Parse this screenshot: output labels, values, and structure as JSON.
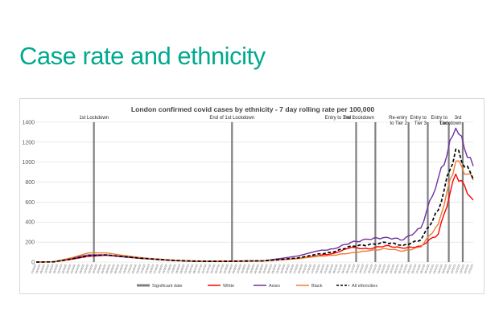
{
  "slide": {
    "title": "Case rate and ethnicity"
  },
  "chart_data": {
    "type": "line",
    "title": "London confirmed covid cases by ethnicity - 7 day rolling rate per 100,000",
    "xlabel": "",
    "ylabel": "",
    "ylim": [
      0,
      1400
    ],
    "yticks": [
      0,
      200,
      400,
      600,
      800,
      1000,
      1200,
      1400
    ],
    "grid": true,
    "legend_position": "bottom",
    "x_dates": [
      "01/03/2020",
      "15/03/2020",
      "29/03/2020",
      "12/04/2020",
      "26/04/2020",
      "10/05/2020",
      "24/05/2020",
      "07/06/2020",
      "21/06/2020",
      "05/07/2020",
      "19/07/2020",
      "02/08/2020",
      "16/08/2020",
      "30/08/2020",
      "13/09/2020",
      "27/09/2020",
      "11/10/2020",
      "25/10/2020",
      "08/11/2020",
      "22/11/2020",
      "06/12/2020",
      "20/12/2020",
      "27/12/2020",
      "03/01/2021",
      "10/01/2021",
      "17/01/2021"
    ],
    "series": [
      {
        "name": "White",
        "color": "#ff0000",
        "values": [
          0,
          2,
          28,
          58,
          68,
          52,
          36,
          30,
          15,
          9,
          7,
          7,
          9,
          11,
          24,
          36,
          62,
          86,
          146,
          132,
          165,
          138,
          160,
          280,
          880,
          620
        ]
      },
      {
        "name": "Asian",
        "color": "#7030a0",
        "values": [
          0,
          3,
          38,
          72,
          72,
          54,
          40,
          24,
          14,
          9,
          8,
          10,
          12,
          13,
          36,
          62,
          108,
          132,
          196,
          228,
          248,
          222,
          340,
          840,
          1340,
          960
        ]
      },
      {
        "name": "Black",
        "color": "#ed7d31",
        "values": [
          0,
          3,
          42,
          92,
          92,
          66,
          44,
          28,
          18,
          12,
          9,
          9,
          11,
          13,
          22,
          34,
          56,
          68,
          92,
          112,
          135,
          110,
          150,
          380,
          1010,
          820
        ]
      },
      {
        "name": "All ethnicities",
        "color": "#000000",
        "dashed": true,
        "values": [
          0,
          2,
          30,
          62,
          72,
          54,
          38,
          26,
          15,
          9,
          7,
          8,
          10,
          12,
          26,
          42,
          76,
          100,
          160,
          172,
          196,
          168,
          220,
          520,
          1130,
          830
        ]
      }
    ],
    "significant_dates": [
      {
        "x_index": 3.3,
        "label_lines": [
          "1st Lockdown"
        ]
      },
      {
        "x_index": 11.2,
        "label_lines": [
          "End of 1st Lockdown"
        ]
      },
      {
        "x_index": 18.3,
        "label_lines": [
          "Entry to Tier 2"
        ]
      },
      {
        "x_index": 19.4,
        "label_lines": [
          "2nd Lockdown"
        ]
      },
      {
        "x_index": 21.3,
        "label_lines": [
          "Re-entry",
          "to Tier 2"
        ]
      },
      {
        "x_index": 22.4,
        "label_lines": [
          "Entry to",
          "Tier 3"
        ]
      },
      {
        "x_index": 23.6,
        "label_lines": [
          "Entry to",
          "Tier"
        ]
      },
      {
        "x_index": 24.4,
        "label_lines": [
          "3rd",
          "Lockdown"
        ]
      }
    ],
    "legend": [
      {
        "name": "Significant date",
        "color": "#808080",
        "style": "thick"
      },
      {
        "name": "White",
        "color": "#ff0000",
        "style": "solid"
      },
      {
        "name": "Asian",
        "color": "#7030a0",
        "style": "solid"
      },
      {
        "name": "Black",
        "color": "#ed7d31",
        "style": "solid"
      },
      {
        "name": "All ethnicities",
        "color": "#000000",
        "style": "dashed"
      }
    ],
    "colors": {
      "grid": "#d9d9d9",
      "significant_date": "#808080"
    }
  }
}
